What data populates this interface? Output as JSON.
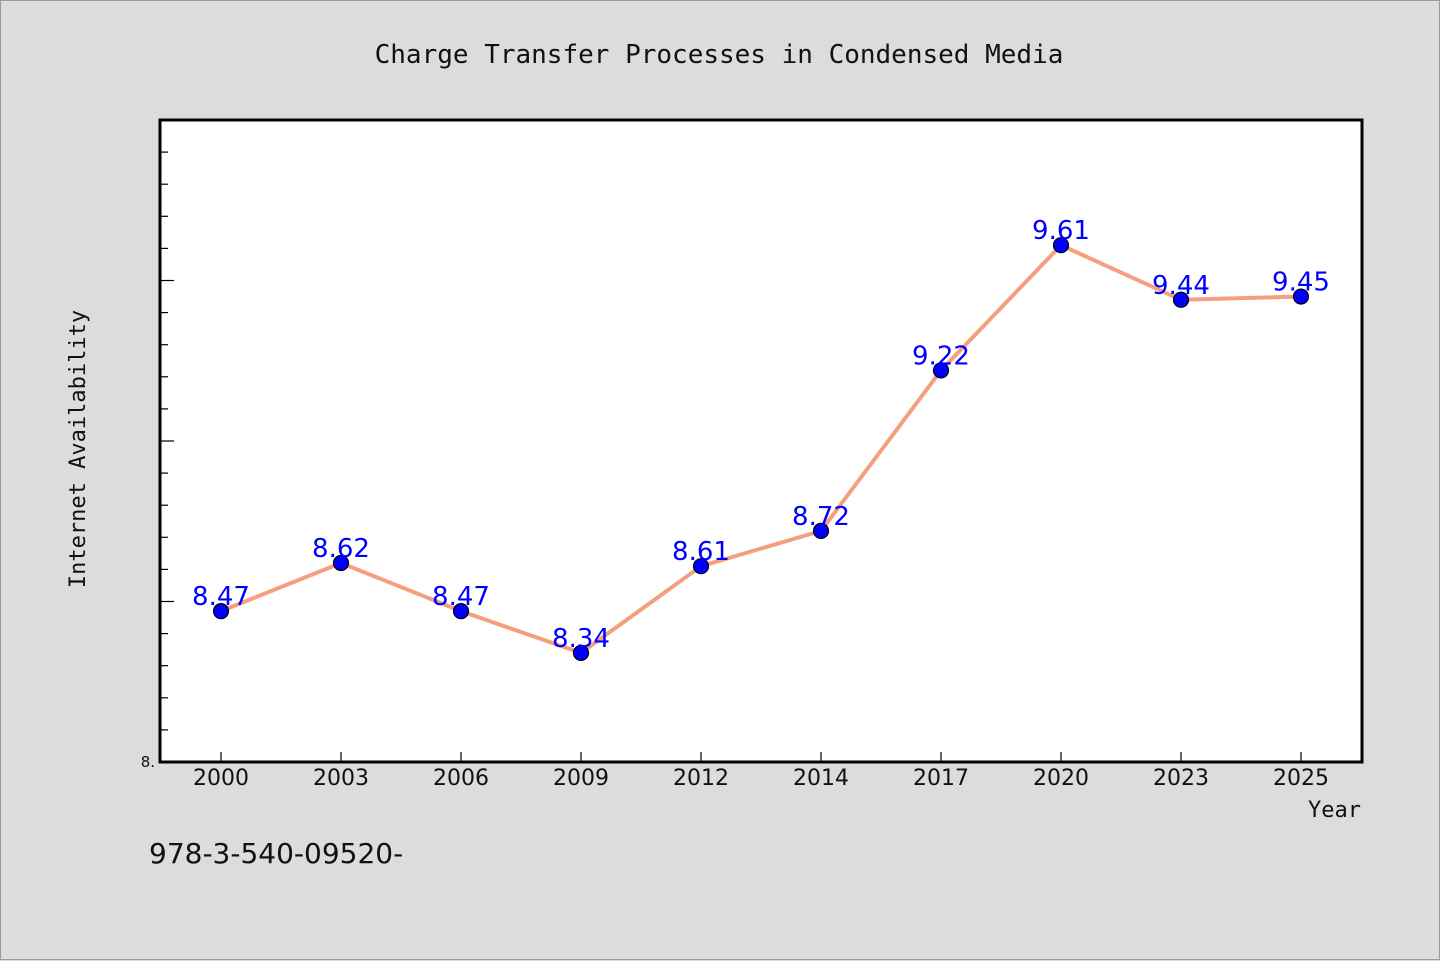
{
  "chart_data": {
    "type": "line",
    "title": "Charge Transfer Processes in Condensed Media",
    "xlabel": "Year",
    "ylabel": "Internet Availability",
    "categories": [
      "2000",
      "2003",
      "2006",
      "2009",
      "2012",
      "2014",
      "2017",
      "2020",
      "2023",
      "2025"
    ],
    "series": [
      {
        "values": [
          8.47,
          8.62,
          8.47,
          8.34,
          8.61,
          8.72,
          9.22,
          9.61,
          9.44,
          9.45
        ],
        "data_labels": [
          "8.47",
          "8.62",
          "8.47",
          "8.34",
          "8.61",
          "8.72",
          "9.22",
          "9.61",
          "9.44",
          "9.45"
        ]
      }
    ],
    "ylim": [
      8.0,
      10.0
    ],
    "y_tick_labels": [
      "8."
    ],
    "grid": false,
    "line_color": "#f4a07f",
    "marker_color": "#0000ff",
    "data_label_color": "#0000ff"
  },
  "footer": {
    "code": "978-3-540-09520-"
  },
  "colors": {
    "background": "#dcdcdc",
    "plot_background": "#ffffff"
  }
}
